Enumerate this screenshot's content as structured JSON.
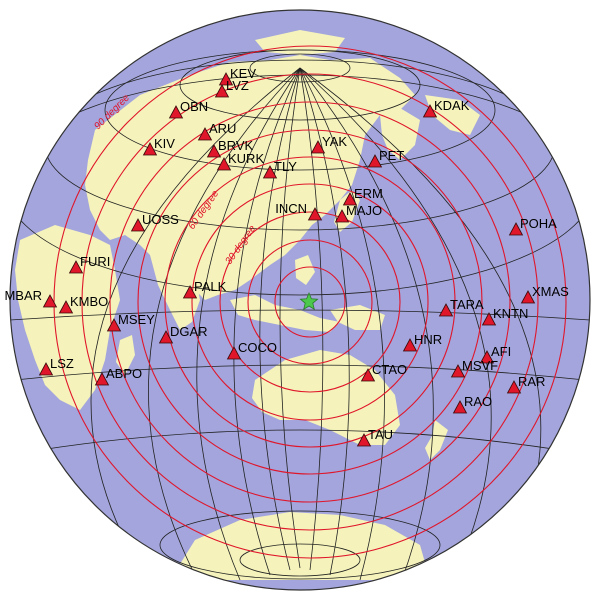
{
  "map": {
    "projection": "azimuthal orthographic globe",
    "colors": {
      "ocean": "#a3a5dc",
      "land": "#f5f3bb",
      "graticule": "#222222",
      "distance_rings": "#e0162b",
      "station_fill": "#e0162b",
      "station_stroke": "#3a0a0a",
      "epicenter": "#4cc94c"
    },
    "epicenter_icon": "star-icon",
    "station_icon": "triangle-icon",
    "distance_labels": [
      {
        "id": "d30",
        "text": "30 degree"
      },
      {
        "id": "d60",
        "text": "60 degree"
      },
      {
        "id": "d90",
        "text": "90 degree"
      }
    ],
    "stations": [
      {
        "code": "KEV"
      },
      {
        "code": "LVZ"
      },
      {
        "code": "KDAK"
      },
      {
        "code": "OBN"
      },
      {
        "code": "ARU"
      },
      {
        "code": "KIV"
      },
      {
        "code": "BRVK"
      },
      {
        "code": "YAK"
      },
      {
        "code": "PET"
      },
      {
        "code": "KURK"
      },
      {
        "code": "TLY"
      },
      {
        "code": "ERM"
      },
      {
        "code": "INCN"
      },
      {
        "code": "MAJO"
      },
      {
        "code": "UOSS"
      },
      {
        "code": "POHA"
      },
      {
        "code": "FURI"
      },
      {
        "code": "MBAR"
      },
      {
        "code": "KMBO"
      },
      {
        "code": "PALK"
      },
      {
        "code": "XMAS"
      },
      {
        "code": "TARA"
      },
      {
        "code": "KNTN"
      },
      {
        "code": "MSEY"
      },
      {
        "code": "DGAR"
      },
      {
        "code": "HNR"
      },
      {
        "code": "COCO"
      },
      {
        "code": "AFI"
      },
      {
        "code": "LSZ"
      },
      {
        "code": "ABPO"
      },
      {
        "code": "CTAO"
      },
      {
        "code": "MSVF"
      },
      {
        "code": "RAR"
      },
      {
        "code": "RAO"
      },
      {
        "code": "TAU"
      }
    ]
  }
}
